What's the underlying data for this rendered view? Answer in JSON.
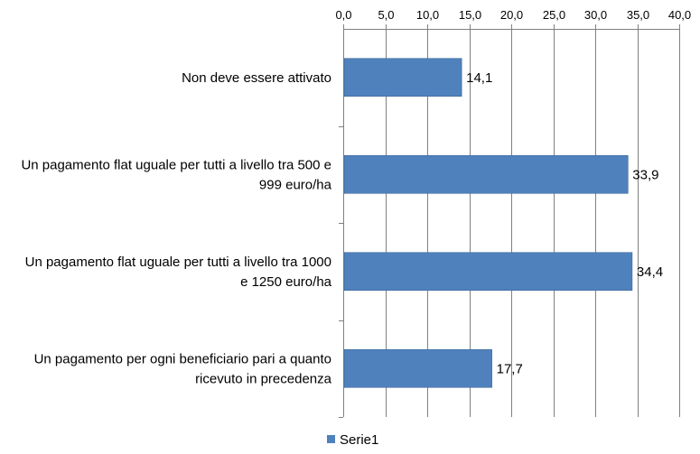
{
  "chart_data": {
    "type": "bar",
    "orientation": "horizontal",
    "categories": [
      [
        "Non deve essere attivato"
      ],
      [
        "Un pagamento flat uguale per tutti a livello tra 500 e",
        "999 euro/ha"
      ],
      [
        "Un pagamento flat uguale per tutti a livello tra 1000",
        "e 1250 euro/ha"
      ],
      [
        "Un pagamento per ogni beneficiario pari a quanto",
        "ricevuto in precedenza"
      ]
    ],
    "series": [
      {
        "name": "Serie1",
        "values": [
          14.1,
          33.9,
          34.4,
          17.7
        ],
        "value_labels": [
          "14,1",
          "33,9",
          "34,4",
          "17,7"
        ],
        "color": "#4F81BD"
      }
    ],
    "x_ticks": [
      0,
      5,
      10,
      15,
      20,
      25,
      30,
      35,
      40
    ],
    "x_tick_labels": [
      "0,0",
      "5,0",
      "10,0",
      "15,0",
      "20,0",
      "25,0",
      "30,0",
      "35,0",
      "40,0"
    ],
    "xlim": [
      0,
      40
    ],
    "axis_position": "top",
    "grid": "vertical",
    "gridline_color": "#808080",
    "legend": {
      "position": "bottom-center"
    },
    "title": "",
    "xlabel": "",
    "ylabel": ""
  }
}
